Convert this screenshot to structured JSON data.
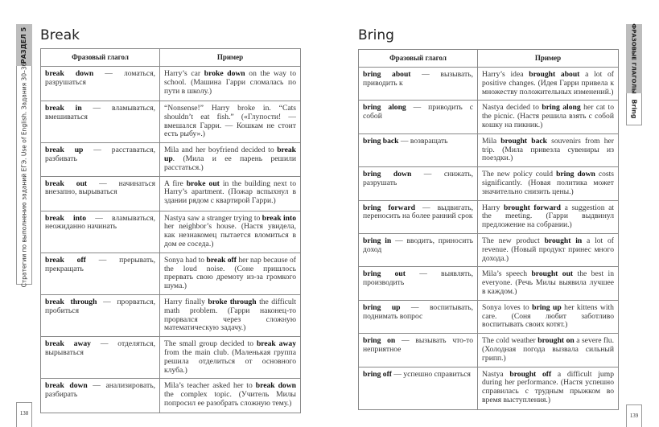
{
  "left_page": {
    "section_tab": "РАЗДЕЛ 5",
    "running_title": "Стратегии по выполнению заданий ЕГЭ. Use of English. Задания 30–36",
    "title": "Break",
    "page_number": "138",
    "headers": [
      "Фразовый глагол",
      "Пример"
    ],
    "rows": [
      {
        "verb": "break down",
        "meaning": " — ломаться, разрушаться",
        "pre": "Harry’s car ",
        "bold": "broke down",
        "post": " on the way to school. (Машина Гарри сломалась по пути в школу.)"
      },
      {
        "verb": "break in",
        "meaning": " — вламываться, вмешиваться",
        "pre": "“Nonsense!” Harry broke in. “Cats shouldn’t eat fish.” («Глупости! — вмешался Гарри. — Кошкам не стоит есть рыбу».)",
        "bold": "",
        "post": ""
      },
      {
        "verb": "break up",
        "meaning": " — расставаться, разбивать",
        "pre": "Mila and her boyfriend decided to ",
        "bold": "break up",
        "post": ". (Мила и ее парень решили расстаться.)"
      },
      {
        "verb": "break out",
        "meaning": " — начинаться внезапно, вырываться",
        "pre": "A fire ",
        "bold": "broke out",
        "post": " in the building next to Harry’s apartment. (Пожар вспыхнул в здании рядом с квартирой Гарри.)"
      },
      {
        "verb": "break into",
        "meaning": " — вламываться, неожиданно начинать",
        "pre": "Nastya saw a stranger trying to ",
        "bold": "break into",
        "post": " her neighbor’s house. (Настя увидела, как незнакомец пытается вломиться в дом ее соседа.)"
      },
      {
        "verb": "break off",
        "meaning": " — прерывать, прекращать",
        "pre": "Sonya had to ",
        "bold": "break off",
        "post": " her nap because of the loud noise. (Соне пришлось прервать свою дремоту из-за громкого шума.)"
      },
      {
        "verb": "break through",
        "meaning": " — прорваться, пробиться",
        "pre": "Harry finally ",
        "bold": "broke through",
        "post": " the difficult math problem. (Гарри наконец-то прорвался через сложную математическую задачу.)"
      },
      {
        "verb": "break away",
        "meaning": " — отделяться, вырываться",
        "pre": "The small group decided to ",
        "bold": "break away",
        "post": " from the main club. (Маленькая группа решила отделиться от основного клуба.)"
      },
      {
        "verb": "break down",
        "meaning": " — анализировать, разбирать",
        "pre": "Mila’s teacher asked her to ",
        "bold": "break down",
        "post": " the complex topic. (Учитель Милы попросил ее разобрать сложную тему.)"
      }
    ]
  },
  "right_page": {
    "section_tab": "ФРАЗОВЫЕ ГЛАГОЛЫ",
    "running_title": "Bring",
    "title": "Bring",
    "page_number": "139",
    "headers": [
      "Фразовый глагол",
      "Пример"
    ],
    "rows": [
      {
        "verb": "bring about",
        "meaning": " — вызывать, приводить к",
        "pre": "Harry’s idea ",
        "bold": "brought about",
        "post": " a lot of positive changes. (Идея Гарри привела к множеству положительных изменений.)"
      },
      {
        "verb": "bring along",
        "meaning": " — приводить с собой",
        "pre": "Nastya decided to ",
        "bold": "bring along",
        "post": " her cat to the picnic. (Настя решила взять с собой кошку на пикник.)"
      },
      {
        "verb": "bring back",
        "meaning": " — возвращать",
        "pre": "Mila ",
        "bold": "brought back",
        "post": " souvenirs from her trip. (Мила привезла сувениры из поездки.)"
      },
      {
        "verb": "bring down",
        "meaning": " — снижать, разрушать",
        "pre": "The new policy could ",
        "bold": "bring down",
        "post": " costs significantly. (Новая политика может значительно снизить цены.)"
      },
      {
        "verb": "bring forward",
        "meaning": " — выдвигать, переносить на более ранний срок",
        "pre": "Harry ",
        "bold": "brought forward",
        "post": " a suggestion at the meeting. (Гарри выдвинул предложение на собрании.)"
      },
      {
        "verb": "bring in",
        "meaning": " — вводить, приносить доход",
        "pre": "The new product ",
        "bold": "brought in",
        "post": " a lot of revenue. (Новый продукт принес много дохода.)"
      },
      {
        "verb": "bring out",
        "meaning": " — выявлять, производить",
        "pre": "Mila’s speech ",
        "bold": "brought out",
        "post": " the best in everyone. (Речь Милы выявила лучшее в каждом.)"
      },
      {
        "verb": "bring up",
        "meaning": " — воспитывать, поднимать вопрос",
        "pre": "Sonya loves to ",
        "bold": "bring up",
        "post": " her kittens with care. (Соня любит заботливо воспитывать своих котят.)"
      },
      {
        "verb": "bring on",
        "meaning": " — вызывать что-то неприятное",
        "pre": "The cold weather ",
        "bold": "brought on",
        "post": " a severe flu. (Холодная погода вызвала сильный грипп.)"
      },
      {
        "verb": "bring off",
        "meaning": " — успешно справиться",
        "pre": "Nastya ",
        "bold": "brought off",
        "post": " a difficult jump during her performance. (Настя успешно справилась с трудным прыжком во время выступления.)"
      }
    ]
  }
}
